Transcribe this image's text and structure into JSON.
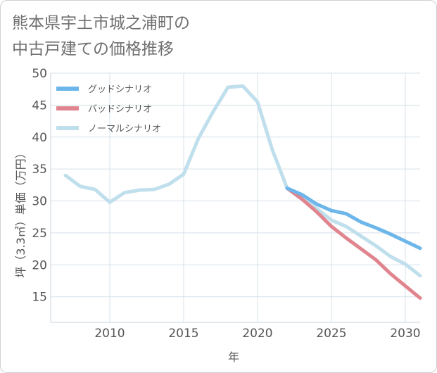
{
  "title_line1": "熊本県宇土市城之浦町の",
  "title_line2": "中古戸建ての価格推移",
  "chart_data": {
    "type": "line",
    "xlabel": "年",
    "ylabel": "坪（3.3㎡）単価（万円）",
    "xlim": [
      2006,
      2031
    ],
    "ylim": [
      11,
      50
    ],
    "xticks": [
      2010,
      2015,
      2020,
      2025,
      2030
    ],
    "yticks": [
      15,
      20,
      25,
      30,
      35,
      40,
      45,
      50
    ],
    "grid": true,
    "legend_position": "top-left",
    "series": [
      {
        "name": "グッドシナリオ",
        "color": "#6db6ea",
        "x": [
          2022,
          2023,
          2024,
          2025,
          2026,
          2027,
          2028,
          2029,
          2030,
          2031
        ],
        "y": [
          32.0,
          31.0,
          29.5,
          28.5,
          28.0,
          26.7,
          25.8,
          24.8,
          23.7,
          22.6
        ]
      },
      {
        "name": "バッドシナリオ",
        "color": "#e0848e",
        "x": [
          2022,
          2023,
          2024,
          2025,
          2026,
          2027,
          2028,
          2029,
          2030,
          2031
        ],
        "y": [
          32.0,
          30.3,
          28.3,
          26.0,
          24.2,
          22.5,
          20.8,
          18.6,
          16.7,
          14.8
        ]
      },
      {
        "name": "ノーマルシナリオ",
        "color": "#c0dfec",
        "x": [
          2007,
          2008,
          2009,
          2010,
          2011,
          2012,
          2013,
          2014,
          2015,
          2016,
          2017,
          2018,
          2019,
          2020,
          2021,
          2022,
          2023,
          2024,
          2025,
          2026,
          2027,
          2028,
          2029,
          2030,
          2031
        ],
        "y": [
          34.0,
          32.3,
          31.8,
          29.8,
          31.3,
          31.7,
          31.8,
          32.6,
          34.2,
          39.8,
          44.0,
          47.8,
          48.0,
          45.5,
          38.0,
          32.0,
          30.3,
          28.8,
          27.0,
          26.0,
          24.5,
          23.0,
          21.3,
          20.1,
          18.3
        ]
      }
    ]
  }
}
